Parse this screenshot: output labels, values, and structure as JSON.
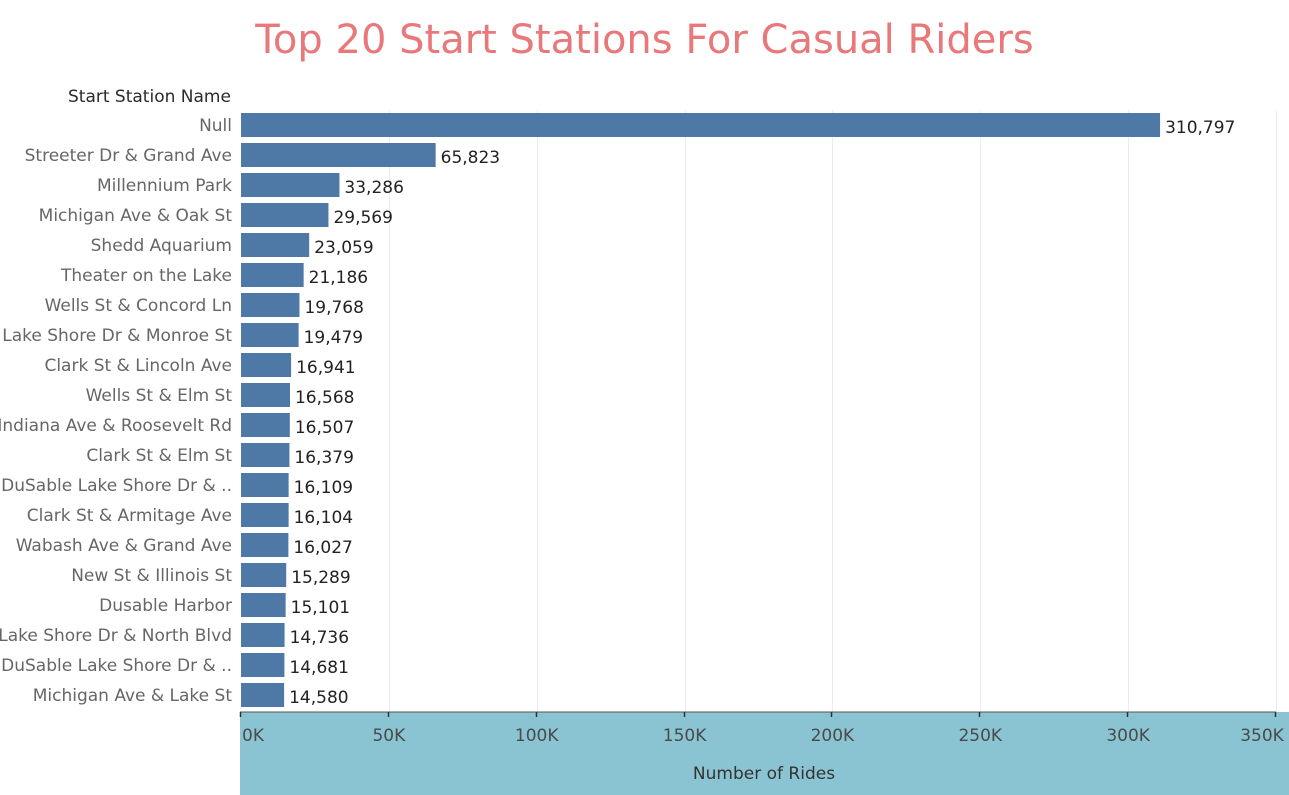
{
  "colors": {
    "title": "#e8787a",
    "bar": "#4e79a7",
    "axis_band": "#8ac4d2",
    "grid": "#ececec"
  },
  "chart_data": {
    "type": "bar",
    "orientation": "horizontal",
    "title": "Top 20 Start Stations For Casual Riders",
    "row_header": "Start Station Name",
    "xlabel": "Number of Rides",
    "xlim": [
      0,
      350000
    ],
    "ticks": [
      0,
      50000,
      100000,
      150000,
      200000,
      250000,
      300000,
      350000
    ],
    "tick_labels": [
      "0K",
      "50K",
      "100K",
      "150K",
      "200K",
      "250K",
      "300K",
      "350K"
    ],
    "grid": "vertical",
    "categories": [
      "Null",
      "Streeter Dr & Grand Ave",
      "Millennium Park",
      "Michigan Ave & Oak St",
      "Shedd Aquarium",
      "Theater on the Lake",
      "Wells St & Concord Ln",
      "Lake Shore Dr & Monroe St",
      "Clark St & Lincoln Ave",
      "Wells St & Elm St",
      "Indiana Ave & Roosevelt Rd",
      "Clark St & Elm St",
      "DuSable Lake Shore Dr & ..",
      "Clark St & Armitage Ave",
      "Wabash Ave & Grand Ave",
      "New St & Illinois St",
      "Dusable Harbor",
      "Lake Shore Dr & North Blvd",
      "DuSable Lake Shore Dr & ..",
      "Michigan Ave & Lake St"
    ],
    "values": [
      310797,
      65823,
      33286,
      29569,
      23059,
      21186,
      19768,
      19479,
      16941,
      16568,
      16507,
      16379,
      16109,
      16104,
      16027,
      15289,
      15101,
      14736,
      14681,
      14580
    ],
    "value_labels": [
      "310,797",
      "65,823",
      "33,286",
      "29,569",
      "23,059",
      "21,186",
      "19,768",
      "19,479",
      "16,941",
      "16,568",
      "16,507",
      "16,379",
      "16,109",
      "16,104",
      "16,027",
      "15,289",
      "15,101",
      "14,736",
      "14,681",
      "14,580"
    ]
  }
}
